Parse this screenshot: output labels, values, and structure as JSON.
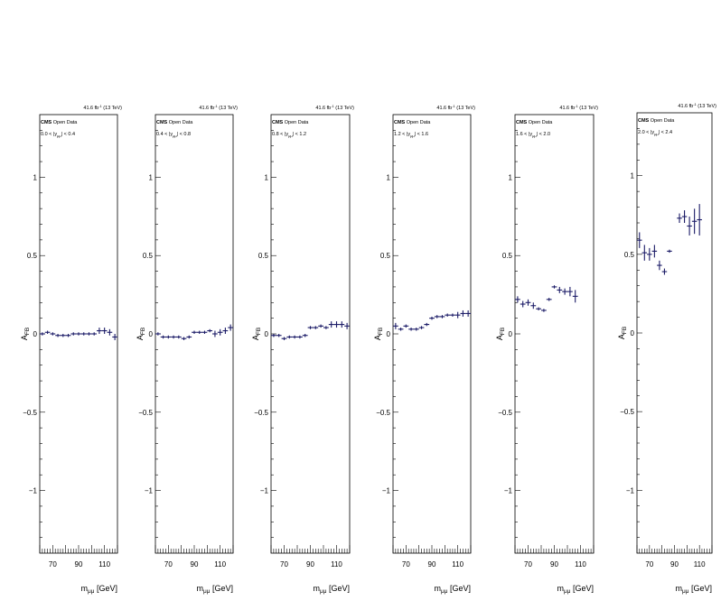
{
  "figure": {
    "colors": {
      "marker": "#1a1a66",
      "axis": "#000000",
      "background": "#ffffff"
    },
    "shared": {
      "lumi_label": "41.6 fb",
      "lumi_exp": "-1",
      "lumi_energy": "(13 TeV)",
      "cms_bold": "CMS",
      "cms_rest": "Open Data",
      "ylabel_main": "A",
      "ylabel_sub": "FB",
      "xlabel_main": "m",
      "xlabel_sub": "μμ",
      "xlabel_unit": "[GeV]"
    }
  },
  "chart_data": [
    {
      "type": "scatter",
      "bin_label": "0.0 < |y",
      "bin_sub": "μμ",
      "bin_rest": "| < 0.4",
      "xlim": [
        60,
        120
      ],
      "ylim": [
        -1.4,
        1.4
      ],
      "xticks": [
        "70",
        "90",
        "110"
      ],
      "yticks": [
        "1",
        "0.5",
        "0",
        "−0.5",
        "−1"
      ],
      "points": [
        {
          "x": 62,
          "y": 0.0,
          "xerr": 2,
          "yerr": 0.01
        },
        {
          "x": 66,
          "y": 0.01,
          "xerr": 2,
          "yerr": 0.01
        },
        {
          "x": 70,
          "y": 0.0,
          "xerr": 2,
          "yerr": 0.01
        },
        {
          "x": 74,
          "y": -0.01,
          "xerr": 2,
          "yerr": 0.01
        },
        {
          "x": 78,
          "y": -0.01,
          "xerr": 2,
          "yerr": 0.01
        },
        {
          "x": 82,
          "y": -0.01,
          "xerr": 2,
          "yerr": 0.01
        },
        {
          "x": 86,
          "y": 0.0,
          "xerr": 2,
          "yerr": 0.01
        },
        {
          "x": 90,
          "y": 0.0,
          "xerr": 2,
          "yerr": 0.01
        },
        {
          "x": 94,
          "y": 0.0,
          "xerr": 2,
          "yerr": 0.01
        },
        {
          "x": 98,
          "y": 0.0,
          "xerr": 2,
          "yerr": 0.01
        },
        {
          "x": 102,
          "y": 0.0,
          "xerr": 2,
          "yerr": 0.01
        },
        {
          "x": 106,
          "y": 0.02,
          "xerr": 2,
          "yerr": 0.02
        },
        {
          "x": 110,
          "y": 0.02,
          "xerr": 2,
          "yerr": 0.02
        },
        {
          "x": 114,
          "y": 0.01,
          "xerr": 2,
          "yerr": 0.02
        },
        {
          "x": 118,
          "y": -0.02,
          "xerr": 2,
          "yerr": 0.02
        }
      ]
    },
    {
      "type": "scatter",
      "bin_label": "0.4 < |y",
      "bin_sub": "μμ",
      "bin_rest": "| < 0.8",
      "xlim": [
        60,
        120
      ],
      "ylim": [
        -1.4,
        1.4
      ],
      "xticks": [
        "70",
        "90",
        "110"
      ],
      "yticks": [
        "1",
        "0.5",
        "0",
        "−0.5",
        "−1"
      ],
      "points": [
        {
          "x": 62,
          "y": 0.0,
          "xerr": 2,
          "yerr": 0.01
        },
        {
          "x": 66,
          "y": -0.02,
          "xerr": 2,
          "yerr": 0.01
        },
        {
          "x": 70,
          "y": -0.02,
          "xerr": 2,
          "yerr": 0.01
        },
        {
          "x": 74,
          "y": -0.02,
          "xerr": 2,
          "yerr": 0.01
        },
        {
          "x": 78,
          "y": -0.02,
          "xerr": 2,
          "yerr": 0.01
        },
        {
          "x": 82,
          "y": -0.03,
          "xerr": 2,
          "yerr": 0.01
        },
        {
          "x": 86,
          "y": -0.02,
          "xerr": 2,
          "yerr": 0.01
        },
        {
          "x": 90,
          "y": 0.01,
          "xerr": 2,
          "yerr": 0.01
        },
        {
          "x": 94,
          "y": 0.01,
          "xerr": 2,
          "yerr": 0.01
        },
        {
          "x": 98,
          "y": 0.01,
          "xerr": 2,
          "yerr": 0.01
        },
        {
          "x": 102,
          "y": 0.02,
          "xerr": 2,
          "yerr": 0.01
        },
        {
          "x": 106,
          "y": 0.0,
          "xerr": 2,
          "yerr": 0.02
        },
        {
          "x": 110,
          "y": 0.01,
          "xerr": 2,
          "yerr": 0.02
        },
        {
          "x": 114,
          "y": 0.02,
          "xerr": 2,
          "yerr": 0.02
        },
        {
          "x": 118,
          "y": 0.04,
          "xerr": 2,
          "yerr": 0.02
        }
      ]
    },
    {
      "type": "scatter",
      "bin_label": "0.8 < |y",
      "bin_sub": "μμ",
      "bin_rest": "| < 1.2",
      "xlim": [
        60,
        120
      ],
      "ylim": [
        -1.4,
        1.4
      ],
      "xticks": [
        "70",
        "90",
        "110"
      ],
      "yticks": [
        "1",
        "0.5",
        "0",
        "−0.5",
        "−1"
      ],
      "points": [
        {
          "x": 62,
          "y": -0.01,
          "xerr": 2,
          "yerr": 0.01
        },
        {
          "x": 66,
          "y": -0.01,
          "xerr": 2,
          "yerr": 0.01
        },
        {
          "x": 70,
          "y": -0.03,
          "xerr": 2,
          "yerr": 0.01
        },
        {
          "x": 74,
          "y": -0.02,
          "xerr": 2,
          "yerr": 0.01
        },
        {
          "x": 78,
          "y": -0.02,
          "xerr": 2,
          "yerr": 0.01
        },
        {
          "x": 82,
          "y": -0.02,
          "xerr": 2,
          "yerr": 0.01
        },
        {
          "x": 86,
          "y": -0.01,
          "xerr": 2,
          "yerr": 0.01
        },
        {
          "x": 90,
          "y": 0.04,
          "xerr": 2,
          "yerr": 0.01
        },
        {
          "x": 94,
          "y": 0.04,
          "xerr": 2,
          "yerr": 0.01
        },
        {
          "x": 98,
          "y": 0.05,
          "xerr": 2,
          "yerr": 0.01
        },
        {
          "x": 102,
          "y": 0.04,
          "xerr": 2,
          "yerr": 0.01
        },
        {
          "x": 106,
          "y": 0.06,
          "xerr": 2,
          "yerr": 0.02
        },
        {
          "x": 110,
          "y": 0.06,
          "xerr": 2,
          "yerr": 0.02
        },
        {
          "x": 114,
          "y": 0.06,
          "xerr": 2,
          "yerr": 0.02
        },
        {
          "x": 118,
          "y": 0.05,
          "xerr": 2,
          "yerr": 0.02
        }
      ]
    },
    {
      "type": "scatter",
      "bin_label": "1.2 < |y",
      "bin_sub": "μμ",
      "bin_rest": "| < 1.6",
      "xlim": [
        60,
        120
      ],
      "ylim": [
        -1.4,
        1.4
      ],
      "xticks": [
        "70",
        "90",
        "110"
      ],
      "yticks": [
        "1",
        "0.5",
        "0",
        "−0.5",
        "−1"
      ],
      "points": [
        {
          "x": 62,
          "y": 0.05,
          "xerr": 2,
          "yerr": 0.02
        },
        {
          "x": 66,
          "y": 0.03,
          "xerr": 2,
          "yerr": 0.01
        },
        {
          "x": 70,
          "y": 0.05,
          "xerr": 2,
          "yerr": 0.01
        },
        {
          "x": 74,
          "y": 0.03,
          "xerr": 2,
          "yerr": 0.01
        },
        {
          "x": 78,
          "y": 0.03,
          "xerr": 2,
          "yerr": 0.01
        },
        {
          "x": 82,
          "y": 0.04,
          "xerr": 2,
          "yerr": 0.01
        },
        {
          "x": 86,
          "y": 0.06,
          "xerr": 2,
          "yerr": 0.01
        },
        {
          "x": 90,
          "y": 0.1,
          "xerr": 2,
          "yerr": 0.01
        },
        {
          "x": 94,
          "y": 0.11,
          "xerr": 2,
          "yerr": 0.01
        },
        {
          "x": 98,
          "y": 0.11,
          "xerr": 2,
          "yerr": 0.01
        },
        {
          "x": 102,
          "y": 0.12,
          "xerr": 2,
          "yerr": 0.01
        },
        {
          "x": 106,
          "y": 0.12,
          "xerr": 2,
          "yerr": 0.01
        },
        {
          "x": 110,
          "y": 0.12,
          "xerr": 2,
          "yerr": 0.02
        },
        {
          "x": 114,
          "y": 0.13,
          "xerr": 2,
          "yerr": 0.02
        },
        {
          "x": 118,
          "y": 0.13,
          "xerr": 2,
          "yerr": 0.02
        }
      ]
    },
    {
      "type": "scatter",
      "bin_label": "1.6 < |y",
      "bin_sub": "μμ",
      "bin_rest": "| < 2.0",
      "xlim": [
        60,
        120
      ],
      "ylim": [
        -1.4,
        1.4
      ],
      "xticks": [
        "70",
        "90",
        "110"
      ],
      "yticks": [
        "1",
        "0.5",
        "0",
        "−0.5",
        "−1"
      ],
      "points": [
        {
          "x": 62,
          "y": 0.22,
          "xerr": 2,
          "yerr": 0.02
        },
        {
          "x": 66,
          "y": 0.19,
          "xerr": 2,
          "yerr": 0.02
        },
        {
          "x": 70,
          "y": 0.2,
          "xerr": 2,
          "yerr": 0.02
        },
        {
          "x": 74,
          "y": 0.18,
          "xerr": 2,
          "yerr": 0.02
        },
        {
          "x": 78,
          "y": 0.16,
          "xerr": 2,
          "yerr": 0.01
        },
        {
          "x": 82,
          "y": 0.15,
          "xerr": 2,
          "yerr": 0.01
        },
        {
          "x": 86,
          "y": 0.22,
          "xerr": 2,
          "yerr": 0.01
        },
        {
          "x": 90,
          "y": 0.3,
          "xerr": 2,
          "yerr": 0.01
        },
        {
          "x": 94,
          "y": 0.28,
          "xerr": 2,
          "yerr": 0.02
        },
        {
          "x": 98,
          "y": 0.27,
          "xerr": 2,
          "yerr": 0.02
        },
        {
          "x": 102,
          "y": 0.27,
          "xerr": 2,
          "yerr": 0.03
        },
        {
          "x": 106,
          "y": 0.24,
          "xerr": 2,
          "yerr": 0.04
        }
      ]
    },
    {
      "type": "scatter",
      "bin_label": "2.0 < |y",
      "bin_sub": "μμ",
      "bin_rest": "| < 2.4",
      "xlim": [
        60,
        120
      ],
      "ylim": [
        -1.4,
        1.4
      ],
      "xticks": [
        "70",
        "90",
        "110"
      ],
      "yticks": [
        "1",
        "0.5",
        "0",
        "−0.5",
        "−1"
      ],
      "points": [
        {
          "x": 62,
          "y": 0.59,
          "xerr": 2,
          "yerr": 0.05
        },
        {
          "x": 66,
          "y": 0.51,
          "xerr": 2,
          "yerr": 0.05
        },
        {
          "x": 70,
          "y": 0.5,
          "xerr": 2,
          "yerr": 0.04
        },
        {
          "x": 74,
          "y": 0.52,
          "xerr": 2,
          "yerr": 0.04
        },
        {
          "x": 78,
          "y": 0.43,
          "xerr": 2,
          "yerr": 0.03
        },
        {
          "x": 82,
          "y": 0.39,
          "xerr": 2,
          "yerr": 0.02
        },
        {
          "x": 86,
          "y": 0.52,
          "xerr": 2,
          "yerr": 0.01
        },
        {
          "x": 94,
          "y": 0.73,
          "xerr": 2,
          "yerr": 0.03
        },
        {
          "x": 98,
          "y": 0.74,
          "xerr": 2,
          "yerr": 0.04
        },
        {
          "x": 102,
          "y": 0.68,
          "xerr": 2,
          "yerr": 0.06
        },
        {
          "x": 106,
          "y": 0.71,
          "xerr": 2,
          "yerr": 0.08
        },
        {
          "x": 110,
          "y": 0.72,
          "xerr": 2,
          "yerr": 0.1
        }
      ]
    }
  ]
}
